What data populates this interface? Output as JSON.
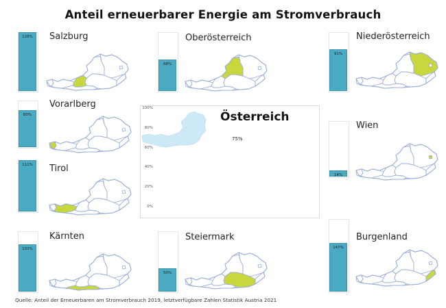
{
  "title": "Anteil erneuerbarer Energie am Stromverbrauch",
  "source": "Quelle: Anteil der Erneuerbaren am Stromverbrauch 2019, letztverfügbare Zahlen Statistik Austria 2021",
  "colors": {
    "bar": "#4aaac4",
    "highlight": "#c8d73c",
    "map_outline": "#9aaed8",
    "austria_fill": "#cde8f6"
  },
  "chart_data": [
    {
      "type": "bar",
      "title": "Österreich",
      "categories": [
        "Österreich"
      ],
      "values": [
        75
      ],
      "value_labels": [
        "75%"
      ],
      "ylim": [
        0,
        100
      ],
      "yticks": [
        "0%",
        "20%",
        "40%",
        "60%",
        "80%",
        "100%"
      ],
      "grid": false
    },
    {
      "type": "bar",
      "title": "Salzburg",
      "categories": [
        "Salzburg"
      ],
      "values": [
        128
      ],
      "value_labels": [
        "128%"
      ]
    },
    {
      "type": "bar",
      "title": "Oberösterreich",
      "categories": [
        "Oberösterreich"
      ],
      "values": [
        68
      ],
      "value_labels": [
        "68%"
      ]
    },
    {
      "type": "bar",
      "title": "Niederösterreich",
      "categories": [
        "Niederösterreich"
      ],
      "values": [
        91
      ],
      "value_labels": [
        "91%"
      ]
    },
    {
      "type": "bar",
      "title": "Vorarlberg",
      "categories": [
        "Vorarlberg"
      ],
      "values": [
        80
      ],
      "value_labels": [
        "80%"
      ]
    },
    {
      "type": "bar",
      "title": "Wien",
      "categories": [
        "Wien"
      ],
      "values": [
        14
      ],
      "value_labels": [
        "14%"
      ]
    },
    {
      "type": "bar",
      "title": "Tirol",
      "categories": [
        "Tirol"
      ],
      "values": [
        111
      ],
      "value_labels": [
        "111%"
      ]
    },
    {
      "type": "bar",
      "title": "Kärnten",
      "categories": [
        "Kärnten"
      ],
      "values": [
        103
      ],
      "value_labels": [
        "103%"
      ]
    },
    {
      "type": "bar",
      "title": "Steiermark",
      "categories": [
        "Steiermark"
      ],
      "values": [
        50
      ],
      "value_labels": [
        "50%"
      ]
    },
    {
      "type": "bar",
      "title": "Burgenland",
      "categories": [
        "Burgenland"
      ],
      "values": [
        147
      ],
      "value_labels": [
        "147%"
      ]
    }
  ]
}
